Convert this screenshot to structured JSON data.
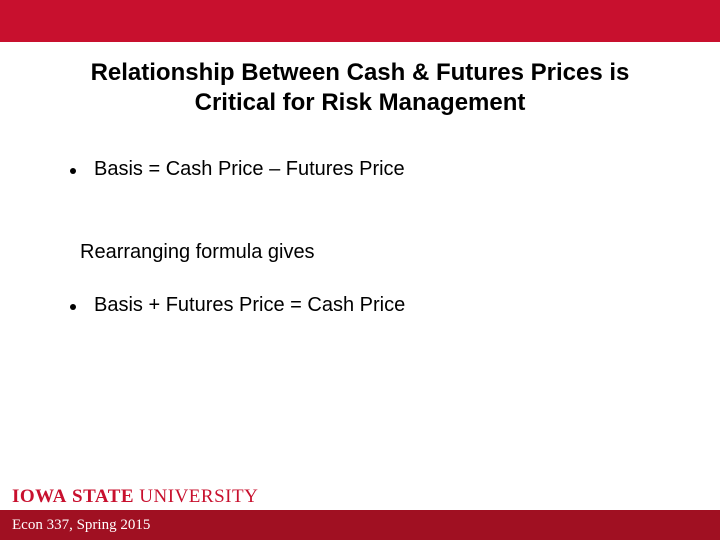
{
  "colors": {
    "brand_red": "#c8102e",
    "bottom_bar": "#a01022",
    "text": "#000000",
    "background": "#ffffff"
  },
  "title": "Relationship Between Cash & Futures Prices is Critical for Risk Management",
  "bullets": {
    "b1": "Basis = Cash Price – Futures Price",
    "mid": "Rearranging formula gives",
    "b2": "Basis + Futures Price = Cash Price"
  },
  "logo": {
    "iowa": "IOWA",
    "state": "STATE",
    "university": "UNIVERSITY"
  },
  "footer": {
    "course": "Econ 337, Spring 2015"
  }
}
